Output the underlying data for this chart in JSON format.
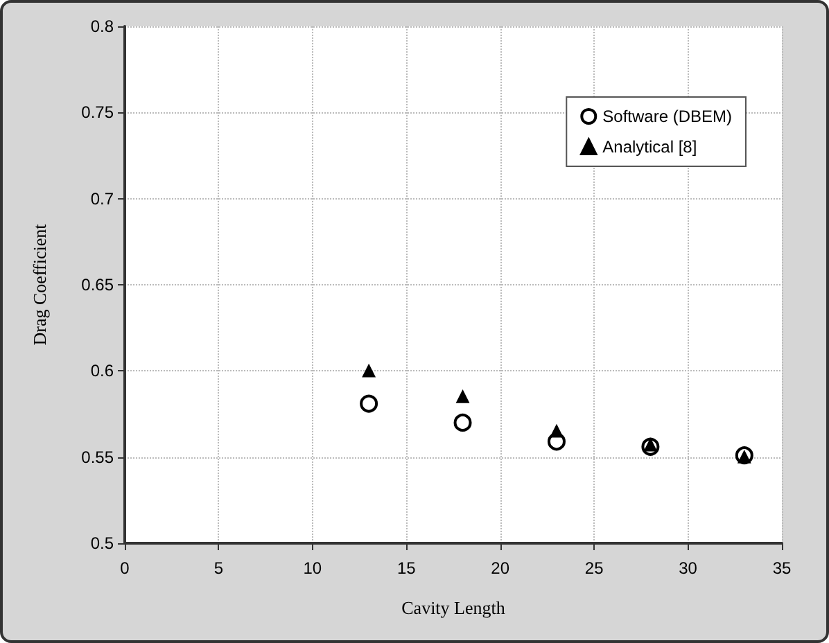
{
  "chart_data": {
    "type": "scatter",
    "xlabel": "Cavity Length",
    "ylabel": "Drag Coefficient",
    "xlim": [
      0,
      35
    ],
    "xticks": [
      0,
      5,
      10,
      15,
      20,
      25,
      30,
      35
    ],
    "ylim": [
      0.5,
      0.8
    ],
    "yticks": [
      0.5,
      0.55,
      0.6,
      0.65,
      0.7,
      0.75,
      0.8
    ],
    "grid": true,
    "legend": "top right",
    "x": [
      13,
      18,
      23,
      28,
      33
    ],
    "series": [
      {
        "name": "Software (DBEM)",
        "color": "#000000",
        "marker": "circle",
        "values": [
          0.581,
          0.57,
          0.559,
          0.556,
          0.551
        ]
      },
      {
        "name": "Analytical [8]",
        "color": "#000000",
        "marker": "triangle",
        "values": [
          0.6,
          0.585,
          0.565,
          0.557,
          0.55
        ]
      }
    ]
  }
}
